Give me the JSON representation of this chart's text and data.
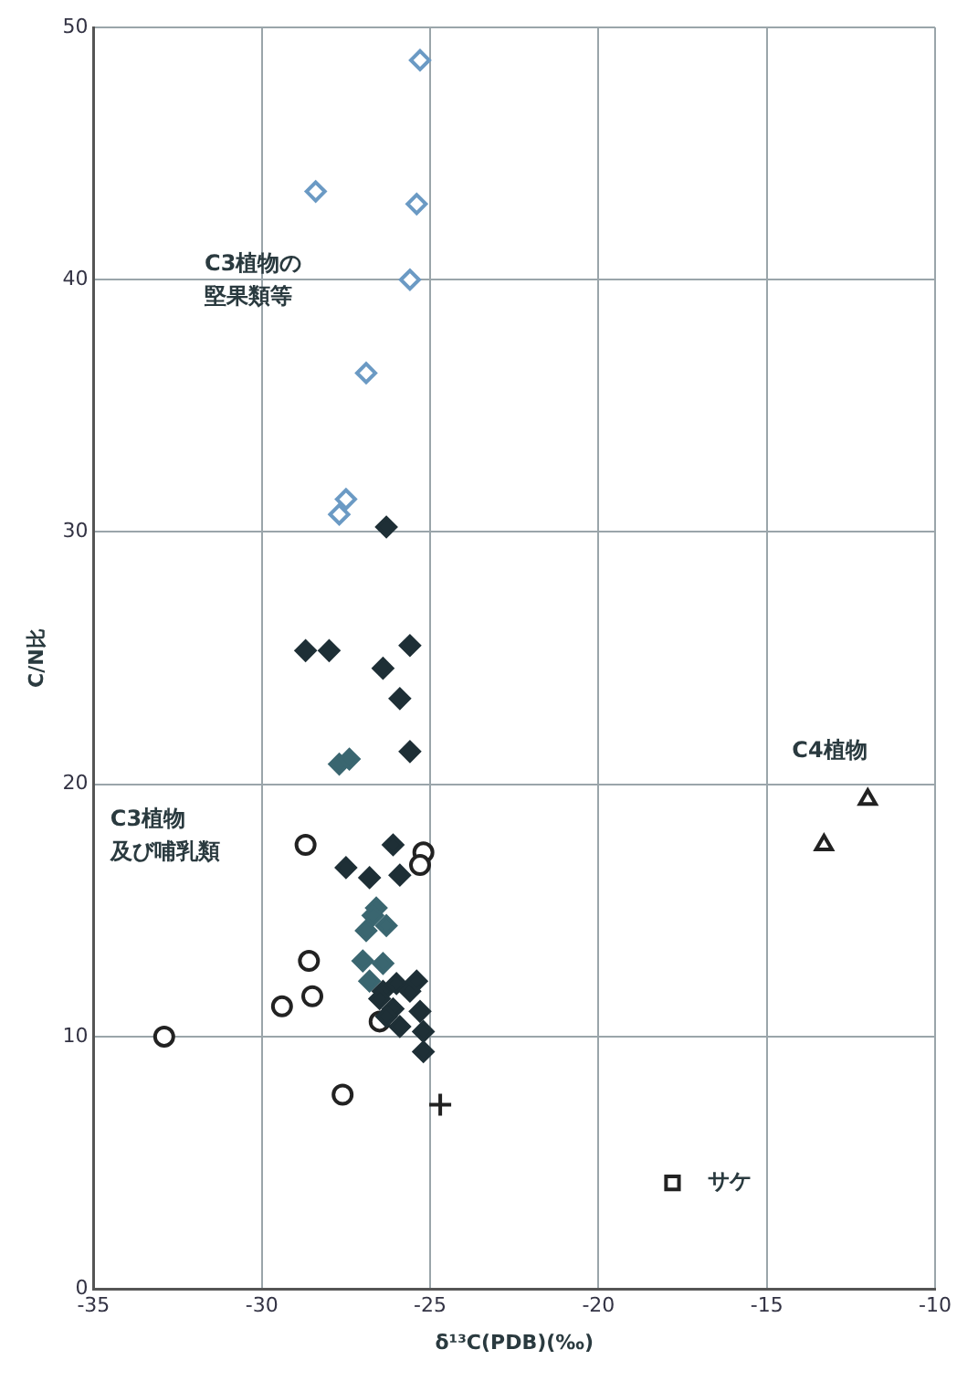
{
  "chart_data": {
    "type": "scatter",
    "xlabel": "δ¹³C(PDB)(‰)",
    "ylabel": "C/N比",
    "xlim": [
      -35,
      -10
    ],
    "ylim": [
      0,
      50
    ],
    "xticks": [
      -35,
      -30,
      -25,
      -20,
      -15,
      -10
    ],
    "yticks": [
      0,
      10,
      20,
      30,
      40,
      50
    ],
    "grid": true,
    "legend": false,
    "series": [
      {
        "color": "#6b9ac4",
        "marker": "diamond",
        "x": [
          -25.3,
          -28.4,
          -25.4,
          -25.6,
          -26.9,
          -27.5,
          -27.7
        ],
        "values": [
          48.7,
          43.5,
          43.0,
          40.0,
          36.3,
          31.3,
          30.7
        ]
      },
      {
        "color": "#1e2f36",
        "marker": "diamond",
        "x": [
          -26.3,
          -28.7,
          -28.0,
          -26.4,
          -25.6,
          -25.9,
          -25.6,
          -26.1,
          -27.5,
          -26.8,
          -25.9,
          -26.4,
          -26.1,
          -26.5,
          -26.0,
          -25.6,
          -26.3,
          -25.9,
          -25.4,
          -25.2,
          -25.2,
          -25.3
        ],
        "values": [
          30.2,
          25.3,
          25.3,
          24.6,
          25.5,
          23.4,
          21.3,
          17.6,
          16.7,
          16.3,
          16.4,
          11.8,
          11.1,
          11.5,
          12.1,
          11.8,
          10.8,
          10.4,
          12.2,
          10.2,
          9.4,
          11.0
        ]
      },
      {
        "color": "#3a6670",
        "marker": "diamond",
        "x": [
          -27.7,
          -27.4,
          -26.6,
          -26.9,
          -26.3,
          -27.0,
          -26.4,
          -26.8,
          -26.7
        ],
        "values": [
          20.8,
          21.0,
          15.1,
          14.2,
          14.4,
          13.0,
          12.9,
          12.2,
          14.8
        ]
      },
      {
        "color": "#222222",
        "marker": "circle",
        "x": [
          -28.7,
          -25.2,
          -25.3,
          -28.6,
          -28.5,
          -29.4,
          -32.9,
          -26.5,
          -27.6
        ],
        "values": [
          17.6,
          17.3,
          16.8,
          13.0,
          11.6,
          11.2,
          10.0,
          10.6,
          7.7
        ]
      },
      {
        "color": "#222222",
        "marker": "triangle",
        "x": [
          -12.0,
          -13.3
        ],
        "values": [
          19.4,
          17.6
        ]
      },
      {
        "color": "#222222",
        "marker": "square",
        "x": [
          -17.8
        ],
        "values": [
          4.2
        ]
      },
      {
        "color": "#222222",
        "marker": "cross",
        "x": [
          -24.7
        ],
        "values": [
          7.3
        ]
      }
    ],
    "annotations": [
      "C3植物の堅果類等",
      "C3植物及び哺乳類",
      "C4植物",
      "サケ"
    ]
  }
}
